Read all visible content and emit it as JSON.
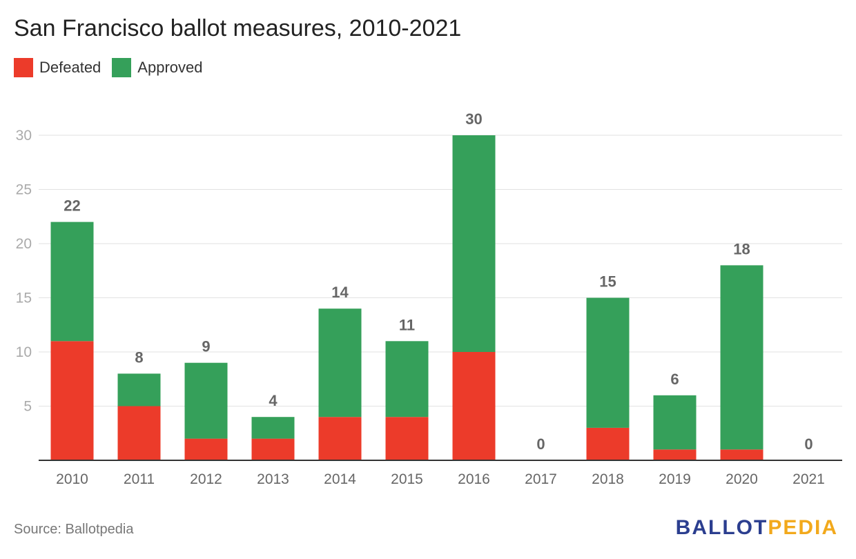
{
  "chart_data": {
    "type": "bar",
    "stacked": true,
    "title": "San Francisco ballot measures, 2010-2021",
    "categories": [
      "2010",
      "2011",
      "2012",
      "2013",
      "2014",
      "2015",
      "2016",
      "2017",
      "2018",
      "2019",
      "2020",
      "2021"
    ],
    "series": [
      {
        "name": "Defeated",
        "color": "#ec3b2a",
        "values": [
          11,
          5,
          2,
          2,
          4,
          4,
          10,
          0,
          3,
          1,
          1,
          0
        ]
      },
      {
        "name": "Approved",
        "color": "#35a05a",
        "values": [
          11,
          3,
          7,
          2,
          10,
          7,
          20,
          0,
          12,
          5,
          17,
          0
        ]
      }
    ],
    "totals": [
      22,
      8,
      9,
      4,
      14,
      11,
      30,
      0,
      15,
      6,
      18,
      0
    ],
    "ylim": [
      0,
      30
    ],
    "yticks": [
      5,
      10,
      15,
      20,
      25,
      30
    ],
    "grid": true,
    "legend": "top-left",
    "xlabel": "",
    "ylabel": ""
  },
  "source": "Source: Ballotpedia",
  "logo": {
    "part1": "BALLOT",
    "part2": "PEDIA"
  }
}
